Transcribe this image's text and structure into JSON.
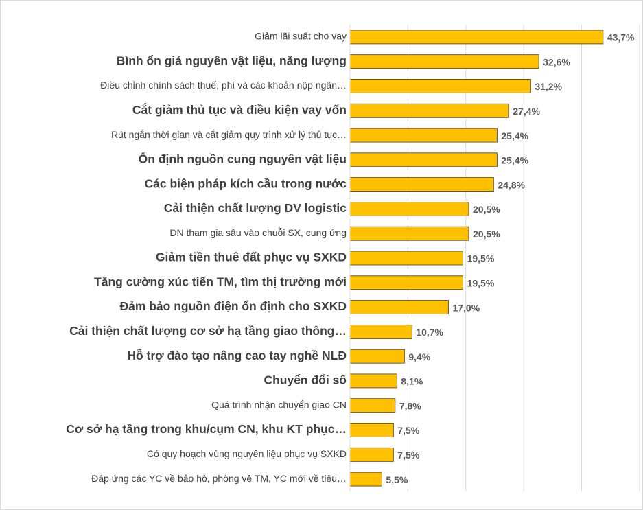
{
  "chart_data": {
    "type": "barh",
    "categories": [
      "Giảm lãi suất cho vay",
      "Bình ổn giá nguyên vật liệu, năng lượng",
      "Điều chỉnh chính sách thuế, phí và các khoản nộp ngân…",
      "Cắt giảm thủ tục và điều kiện vay vốn",
      "Rút ngắn thời gian và cắt giảm quy trình xử lý thủ tục…",
      "Ổn định nguồn cung nguyên vật liệu",
      "Các biện pháp kích cầu trong nước",
      "Cải thiện chất lượng DV logistic",
      "DN tham gia sâu vào chuỗi SX, cung ứng",
      "Giảm tiền thuê đất phục vụ SXKD",
      "Tăng cường xúc tiến TM, tìm thị trường mới",
      "Đảm bảo nguồn điện ổn định cho SXKD",
      "Cải thiện chất lượng cơ sở hạ tầng giao thông…",
      "Hỗ trợ đào tạo nâng cao tay nghề NLĐ",
      "Chuyển đổi số",
      "Quá trình nhận chuyển giao CN",
      "Cơ sở hạ tầng trong khu/cụm CN, khu KT phục…",
      "Có quy hoạch vùng nguyên liệu phục vụ SXKD",
      "Đáp ứng các YC về bảo hộ, phòng vệ TM, YC mới về tiêu…"
    ],
    "values": [
      43.7,
      32.6,
      31.2,
      27.4,
      25.4,
      25.4,
      24.8,
      20.5,
      20.5,
      19.5,
      19.5,
      17.0,
      10.7,
      9.4,
      8.1,
      7.8,
      7.5,
      7.5,
      5.5
    ],
    "value_labels": [
      "43,7%",
      "32,6%",
      "31,2%",
      "27,4%",
      "25,4%",
      "25,4%",
      "24,8%",
      "20,5%",
      "20,5%",
      "19,5%",
      "19,5%",
      "17,0%",
      "10,7%",
      "9,4%",
      "8,1%",
      "7,8%",
      "7,5%",
      "7,5%",
      "5,5%"
    ],
    "color": "#ffc000",
    "xlim": [
      0,
      50
    ],
    "xticks": [
      0,
      10,
      20,
      30,
      40,
      50
    ],
    "grid": true
  }
}
